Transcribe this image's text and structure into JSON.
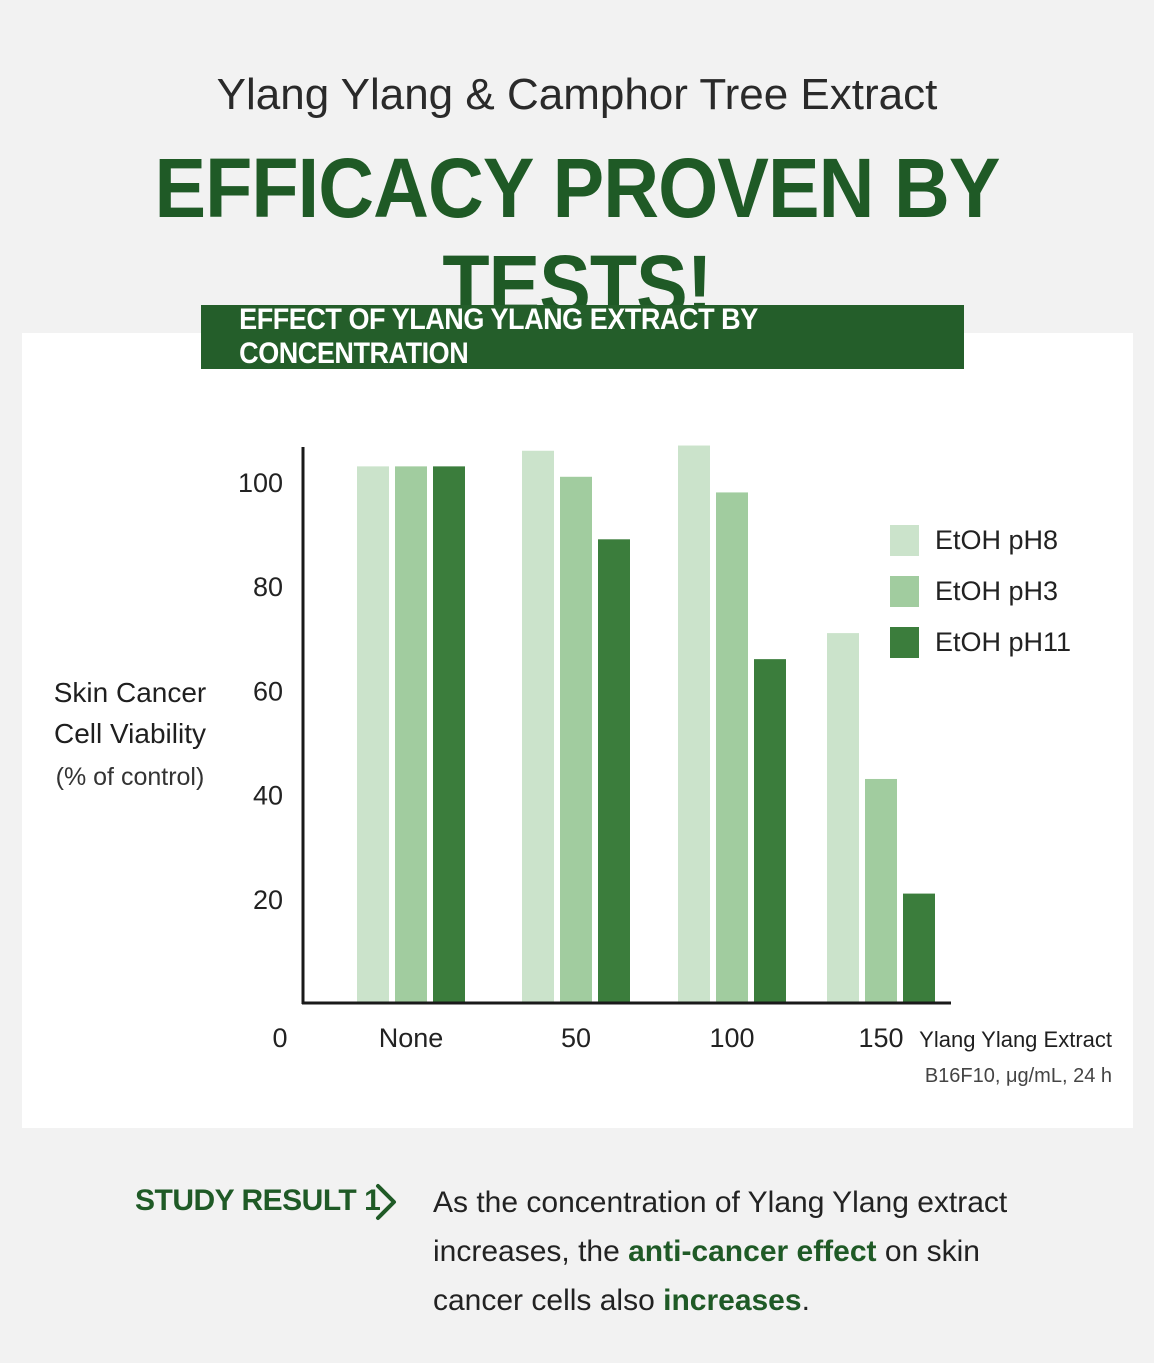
{
  "header": {
    "subtitle": "Ylang Ylang & Camphor Tree Extract",
    "headline": "EFFICACY PROVEN BY TESTS!"
  },
  "banner": {
    "text": "EFFECT OF YLANG YLANG EXTRACT BY CONCENTRATION"
  },
  "chart_data": {
    "type": "bar",
    "title": "EFFECT OF YLANG YLANG EXTRACT BY CONCENTRATION",
    "categories": [
      "None",
      "50",
      "100",
      "150"
    ],
    "series": [
      {
        "name": "EtOH pH8",
        "color": "#cbe3cb",
        "values": [
          103,
          106,
          107,
          71
        ]
      },
      {
        "name": "EtOH pH3",
        "color": "#a1cc9f",
        "values": [
          103,
          101,
          98,
          43
        ]
      },
      {
        "name": "EtOH pH11",
        "color": "#3b7d3c",
        "values": [
          103,
          89,
          66,
          21
        ]
      }
    ],
    "ylabel": [
      "Skin Cancer",
      "Cell Viability",
      "(% of control)"
    ],
    "xlabel": [
      "Ylang Ylang Extract",
      "B16F10, μg/mL, 24 h"
    ],
    "yticks": [
      100,
      80,
      60,
      40,
      20
    ],
    "origin_label": "0",
    "ylim": [
      0,
      110
    ],
    "grid": false,
    "legend_position": "right"
  },
  "study_result": {
    "label": "STUDY RESULT 1",
    "chevron_icon": "chevron-right-icon",
    "text_1": "As the concentration of Ylang Ylang extract increases, the ",
    "highlight_1": "anti-cancer effect",
    "text_2": " on skin cancer cells also ",
    "highlight_2": "increases",
    "text_3": "."
  },
  "colors": {
    "brand_green": "#1f5a26",
    "banner_green": "#245e2a"
  }
}
